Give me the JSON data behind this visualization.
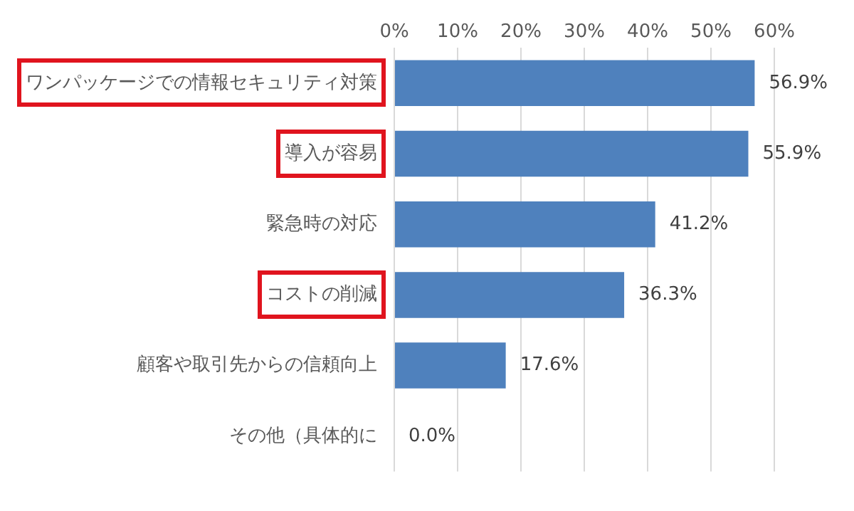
{
  "chart_data": {
    "type": "bar",
    "orientation": "horizontal",
    "categories": [
      "ワンパッケージでの情報セキュリティ対策",
      "導入が容易",
      "緊急時の対応",
      "コストの削減",
      "顧客や取引先からの信頼向上",
      "その他（具体的に"
    ],
    "values": [
      56.9,
      55.9,
      41.2,
      36.3,
      17.6,
      0.0
    ],
    "value_labels": [
      "56.9%",
      "55.9%",
      "41.2%",
      "36.3%",
      "17.6%",
      "0.0%"
    ],
    "color": "#4f81bd",
    "xlim": [
      0,
      60
    ],
    "xticks": [
      {
        "value": 0,
        "label": "0%"
      },
      {
        "value": 10,
        "label": "10%"
      },
      {
        "value": 20,
        "label": "20%"
      },
      {
        "value": 30,
        "label": "30%"
      },
      {
        "value": 40,
        "label": "40%"
      },
      {
        "value": 50,
        "label": "50%"
      },
      {
        "value": 60,
        "label": "60%"
      }
    ],
    "grid": "x",
    "legend": false
  }
}
